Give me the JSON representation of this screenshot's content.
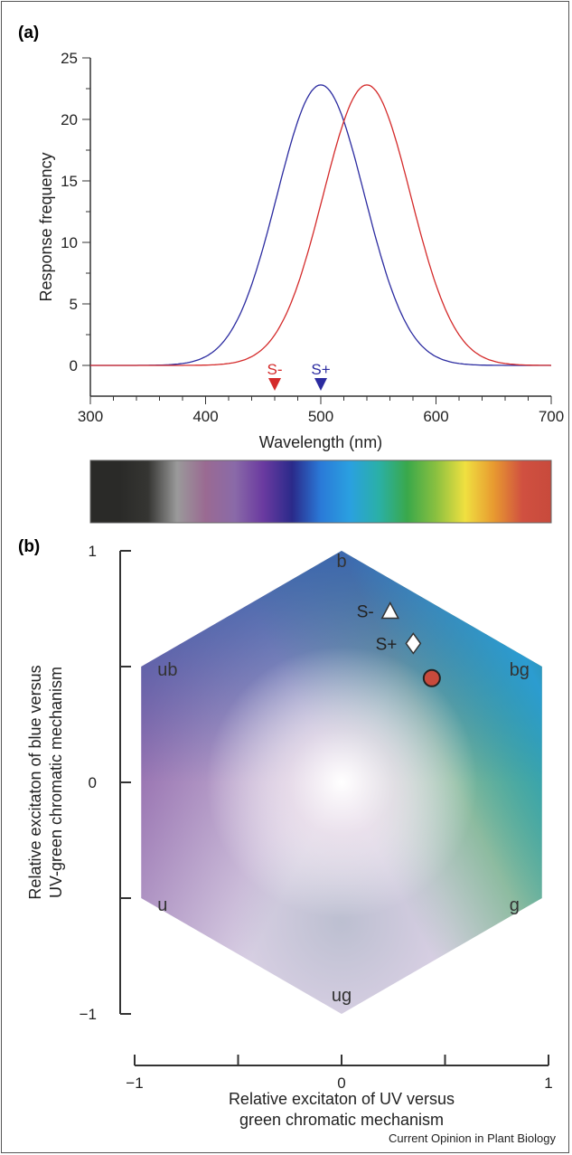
{
  "panel_a_label": "(a)",
  "panel_b_label": "(b)",
  "footer": "Current Opinion in Plant Biology",
  "chart_data": [
    {
      "type": "line",
      "xlabel": "Wavelength (nm)",
      "ylabel": "Response frequency",
      "xlim": [
        300,
        700
      ],
      "ylim": [
        -2.5,
        25
      ],
      "xticks": [
        300,
        400,
        500,
        600,
        700
      ],
      "yticks": [
        0,
        5,
        10,
        15,
        20,
        25
      ],
      "grid": false,
      "series": [
        {
          "color": "#2b2ba0",
          "peak_x": 500,
          "peak_y": 22.8,
          "x": [
            300,
            350,
            380,
            400,
            420,
            440,
            460,
            480,
            500,
            520,
            540,
            560,
            580,
            600,
            620,
            640,
            660,
            700
          ],
          "y": [
            0,
            0,
            0.1,
            0.6,
            2.3,
            6.4,
            12.8,
            19.8,
            22.8,
            19.8,
            12.8,
            6.4,
            2.3,
            0.6,
            0.1,
            0,
            0,
            0
          ]
        },
        {
          "color": "#d42a2a",
          "peak_x": 540,
          "peak_y": 22.8,
          "x": [
            300,
            400,
            420,
            440,
            460,
            480,
            500,
            520,
            540,
            560,
            580,
            600,
            620,
            640,
            660,
            680,
            700
          ],
          "y": [
            0,
            0,
            0.1,
            0.6,
            2.3,
            6.4,
            12.8,
            19.8,
            22.8,
            19.8,
            12.8,
            6.4,
            2.3,
            0.6,
            0.1,
            0,
            0
          ]
        }
      ],
      "annotations": [
        {
          "text": "S-",
          "x": 460,
          "color": "#d42a2a",
          "marker": "down-triangle"
        },
        {
          "text": "S+",
          "x": 500,
          "color": "#2b2ba0",
          "marker": "down-triangle"
        }
      ],
      "spectrum_bar": {
        "range_nm": [
          300,
          700
        ],
        "colors": [
          "#2a2a28",
          "#2a2a28",
          "#353532",
          "#9a9a9a",
          "#9a6a92",
          "#8a6aa8",
          "#6a3aa0",
          "#2a2a8a",
          "#2a7ad8",
          "#2aa0e0",
          "#2ab0a8",
          "#3aa84a",
          "#8ac040",
          "#f0e040",
          "#e89a30",
          "#d05040",
          "#c84a3c"
        ]
      }
    },
    {
      "type": "scatter",
      "xlabel": "Relative excitaton of UV versus green chromatic mechanism",
      "xlabel_lines": [
        "Relative excitaton of UV versus",
        "green chromatic mechanism"
      ],
      "ylabel": "Relative excitaton of blue versus UV-green chromatic mechanism",
      "ylabel_lines": [
        "Relative excitaton of blue versus",
        "UV-green chromatic mechanism"
      ],
      "xlim": [
        -1,
        1
      ],
      "ylim": [
        -1,
        1
      ],
      "xticks": [
        "−1",
        "0",
        "1"
      ],
      "yticks": [
        "1",
        "0",
        "−1"
      ],
      "hexagon_vertices": [
        {
          "label": "b",
          "x": 0,
          "y": 1
        },
        {
          "label": "bg",
          "x": 0.866,
          "y": 0.5
        },
        {
          "label": "g",
          "x": 0.866,
          "y": -0.5
        },
        {
          "label": "ug",
          "x": 0,
          "y": -1
        },
        {
          "label": "u",
          "x": -0.866,
          "y": -0.5
        },
        {
          "label": "ub",
          "x": -0.866,
          "y": 0.5
        }
      ],
      "points": [
        {
          "label": "S-",
          "x": 0.21,
          "y": 0.74,
          "marker": "triangle",
          "color": "#ffffff"
        },
        {
          "label": "S+",
          "x": 0.31,
          "y": 0.6,
          "marker": "diamond",
          "color": "#ffffff"
        },
        {
          "label": "",
          "x": 0.39,
          "y": 0.45,
          "marker": "circle",
          "color": "#c84a3c"
        }
      ]
    }
  ]
}
